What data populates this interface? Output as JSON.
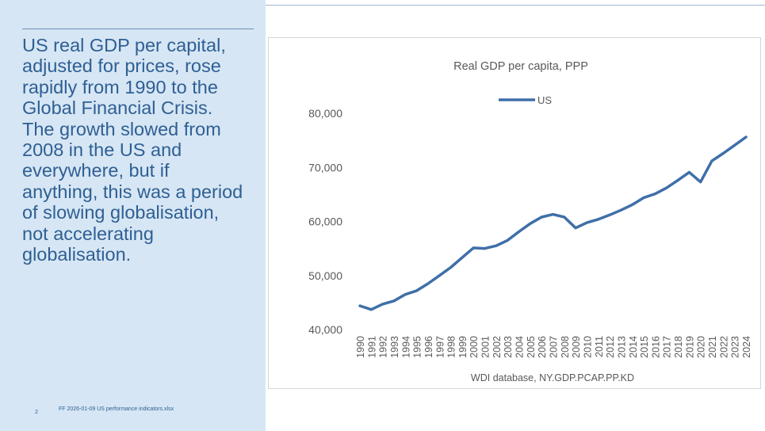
{
  "slide": {
    "body_text": "US real GDP per capital,\nadjusted for prices, rose\nrapidly from 1990 to the\nGlobal Financial Crisis.\nThe growth slowed from\n2008 in the US and\neverywhere, but if\nanything, this was a period\nof slowing globalisation,\nnot accelerating\nglobalisation.",
    "footer_page": "2",
    "footer_text": "FF 2026-01-09 US performance indicators.xlsx"
  },
  "colors": {
    "panel_bg": "#d6e6f4",
    "text": "#2f5f93",
    "series_line": "#3f6fa8"
  },
  "chart_data": {
    "type": "line",
    "title": "Real GDP per capita, PPP",
    "xlabel": "WDI database, NY.GDP.PCAP.PP.KD",
    "ylabel": "",
    "x": [
      "1990",
      "1991",
      "1992",
      "1993",
      "1994",
      "1995",
      "1996",
      "1997",
      "1998",
      "1999",
      "2000",
      "2001",
      "2002",
      "2003",
      "2004",
      "2005",
      "2006",
      "2007",
      "2008",
      "2009",
      "2010",
      "2011",
      "2012",
      "2013",
      "2014",
      "2015",
      "2016",
      "2017",
      "2018",
      "2019",
      "2020",
      "2021",
      "2022",
      "2023",
      "2024"
    ],
    "series": [
      {
        "name": "US",
        "values": [
          44400,
          43700,
          44700,
          45300,
          46500,
          47200,
          48500,
          50000,
          51500,
          53300,
          55100,
          55000,
          55500,
          56500,
          58100,
          59600,
          60800,
          61300,
          60800,
          58800,
          59800,
          60400,
          61200,
          62100,
          63100,
          64400,
          65100,
          66200,
          67600,
          69100,
          67300,
          71200,
          72600,
          74100,
          75600
        ]
      }
    ],
    "y_ticks": [
      "80,000",
      "70,000",
      "60,000",
      "50,000",
      "40,000"
    ],
    "ylim": [
      40000,
      80000
    ],
    "legend": "top-center",
    "grid": false
  }
}
